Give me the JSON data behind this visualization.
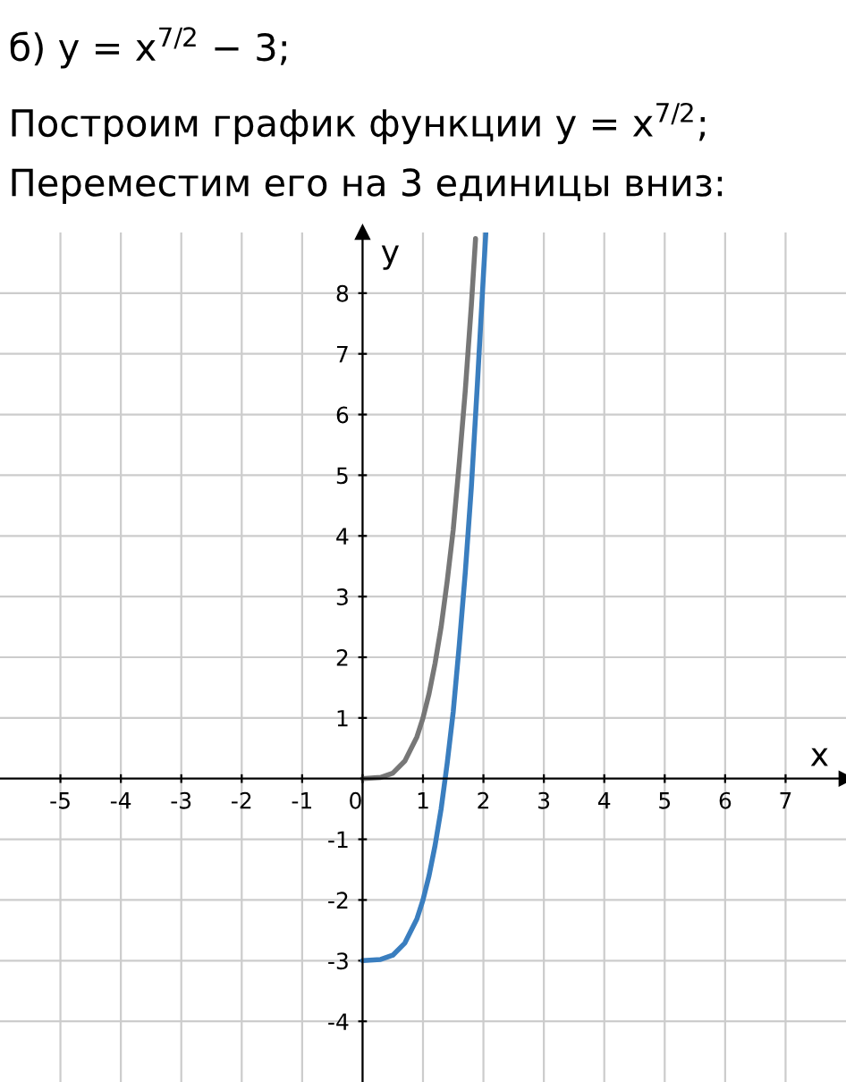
{
  "chart_data": {
    "type": "line",
    "title": "б) y = x$^{7/2}$ − 3;",
    "subtitle": "Построим график функции y = x$^{7/2}$;",
    "annotations": [
      "Переместим его на 3 единицы вниз:"
    ],
    "xlabel": "x",
    "ylabel": "y",
    "series": [
      {
        "color": "#777777",
        "x": [
          0,
          0.3,
          0.5,
          0.7,
          0.9,
          1.0,
          1.1,
          1.2,
          1.3,
          1.4,
          1.5,
          1.6,
          1.7,
          1.8,
          1.87
        ],
        "values": [
          0,
          0.02,
          0.09,
          0.29,
          0.69,
          1.0,
          1.4,
          1.9,
          2.5,
          3.25,
          4.1,
          5.2,
          6.4,
          7.8,
          8.9
        ]
      },
      {
        "color": "#3a7ebf",
        "x": [
          0,
          0.3,
          0.5,
          0.7,
          0.9,
          1.0,
          1.1,
          1.2,
          1.3,
          1.4,
          1.5,
          1.6,
          1.7,
          1.8,
          1.9,
          2.0,
          2.04
        ],
        "values": [
          -3,
          -2.98,
          -2.91,
          -2.71,
          -2.31,
          -2.0,
          -1.6,
          -1.1,
          -0.5,
          0.25,
          1.1,
          2.2,
          3.4,
          4.8,
          6.5,
          8.3,
          9.0
        ]
      }
    ],
    "xlim": [
      -6,
      8
    ],
    "ylim": [
      -5,
      9
    ],
    "xticks": [
      -5,
      -4,
      -3,
      -2,
      -1,
      0,
      1,
      2,
      3,
      4,
      5,
      6,
      7
    ],
    "yticks": [
      -4,
      -3,
      -2,
      -1,
      1,
      2,
      3,
      4,
      5,
      6,
      7,
      8
    ],
    "grid": true,
    "line_style": "solid",
    "marker": "none"
  }
}
